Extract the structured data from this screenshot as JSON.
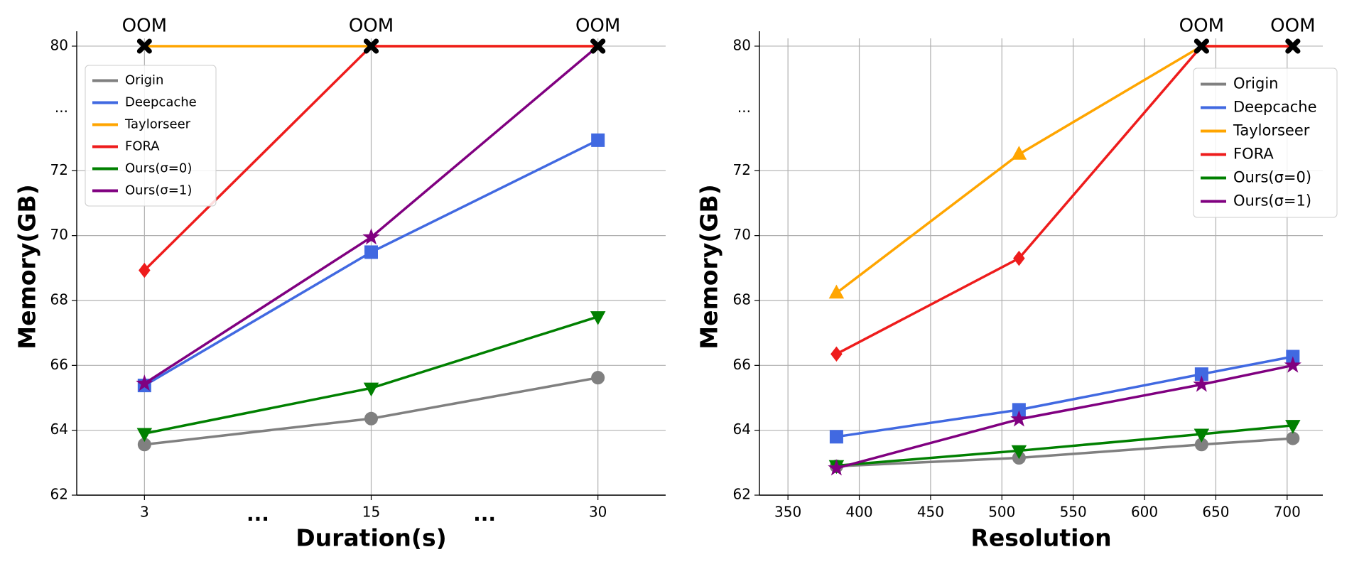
{
  "chart_data": [
    {
      "type": "line",
      "xlabel": "Duration(s)",
      "ylabel": "Memory(GB)",
      "categories": [
        "3",
        "15",
        "30"
      ],
      "category_gap_labels": [
        "...",
        "..."
      ],
      "oom_labels": [
        "OOM",
        "OOM",
        "OOM"
      ],
      "oom_marker_color": "#000000",
      "ylim": [
        62,
        80.5
      ],
      "yticks": [
        62,
        64,
        66,
        68,
        70,
        72,
        80
      ],
      "ybreak": [
        72,
        80
      ],
      "ybreak_label": "...",
      "grid": true,
      "legend": "upper left",
      "series": [
        {
          "name": "Origin",
          "color": "#808080",
          "marker": "circle",
          "values": [
            63.56,
            64.36,
            65.62
          ]
        },
        {
          "name": "Deepcache",
          "color": "#4169e1",
          "marker": "square",
          "values": [
            65.38,
            69.49,
            73.96
          ]
        },
        {
          "name": "Taylorseer",
          "color": "#ffa500",
          "marker": "triangle-up",
          "values": [
            80,
            80,
            80
          ]
        },
        {
          "name": "FORA",
          "color": "#ee1c1c",
          "marker": "diamond",
          "values": [
            68.93,
            80,
            80
          ]
        },
        {
          "name": "Ours(σ=0)",
          "color": "#008000",
          "marker": "triangle-down",
          "values": [
            63.9,
            65.3,
            67.5
          ]
        },
        {
          "name": "Ours(σ=1)",
          "color": "#800080",
          "marker": "star",
          "values": [
            65.44,
            69.95,
            80
          ]
        }
      ]
    },
    {
      "type": "line",
      "xlabel": "Resolution",
      "ylabel": "Memory(GB)",
      "x": [
        384,
        512,
        640,
        704
      ],
      "xlim": [
        330,
        725
      ],
      "xticks": [
        350,
        400,
        450,
        500,
        550,
        600,
        650,
        700
      ],
      "oom_labels": [
        null,
        null,
        "OOM",
        "OOM"
      ],
      "oom_marker_color": "#000000",
      "ylim": [
        62,
        80.5
      ],
      "yticks": [
        62,
        64,
        66,
        68,
        70,
        72,
        80
      ],
      "ybreak": [
        72,
        80
      ],
      "ybreak_label": "...",
      "grid": true,
      "legend": "upper right",
      "series": [
        {
          "name": "Origin",
          "color": "#808080",
          "marker": "circle",
          "values": [
            62.89,
            63.15,
            63.56,
            63.75
          ]
        },
        {
          "name": "Deepcache",
          "color": "#4169e1",
          "marker": "square",
          "values": [
            63.8,
            64.63,
            65.73,
            66.27
          ]
        },
        {
          "name": "Taylorseer",
          "color": "#ffa500",
          "marker": "triangle-up",
          "values": [
            68.23,
            73.06,
            80,
            80
          ]
        },
        {
          "name": "FORA",
          "color": "#ee1c1c",
          "marker": "diamond",
          "values": [
            66.35,
            69.3,
            80,
            80
          ]
        },
        {
          "name": "Ours(σ=0)",
          "color": "#008000",
          "marker": "triangle-down",
          "values": [
            62.91,
            63.37,
            63.88,
            64.15
          ]
        },
        {
          "name": "Ours(σ=1)",
          "color": "#800080",
          "marker": "star",
          "values": [
            62.83,
            64.34,
            65.41,
            66.0
          ]
        }
      ]
    }
  ]
}
